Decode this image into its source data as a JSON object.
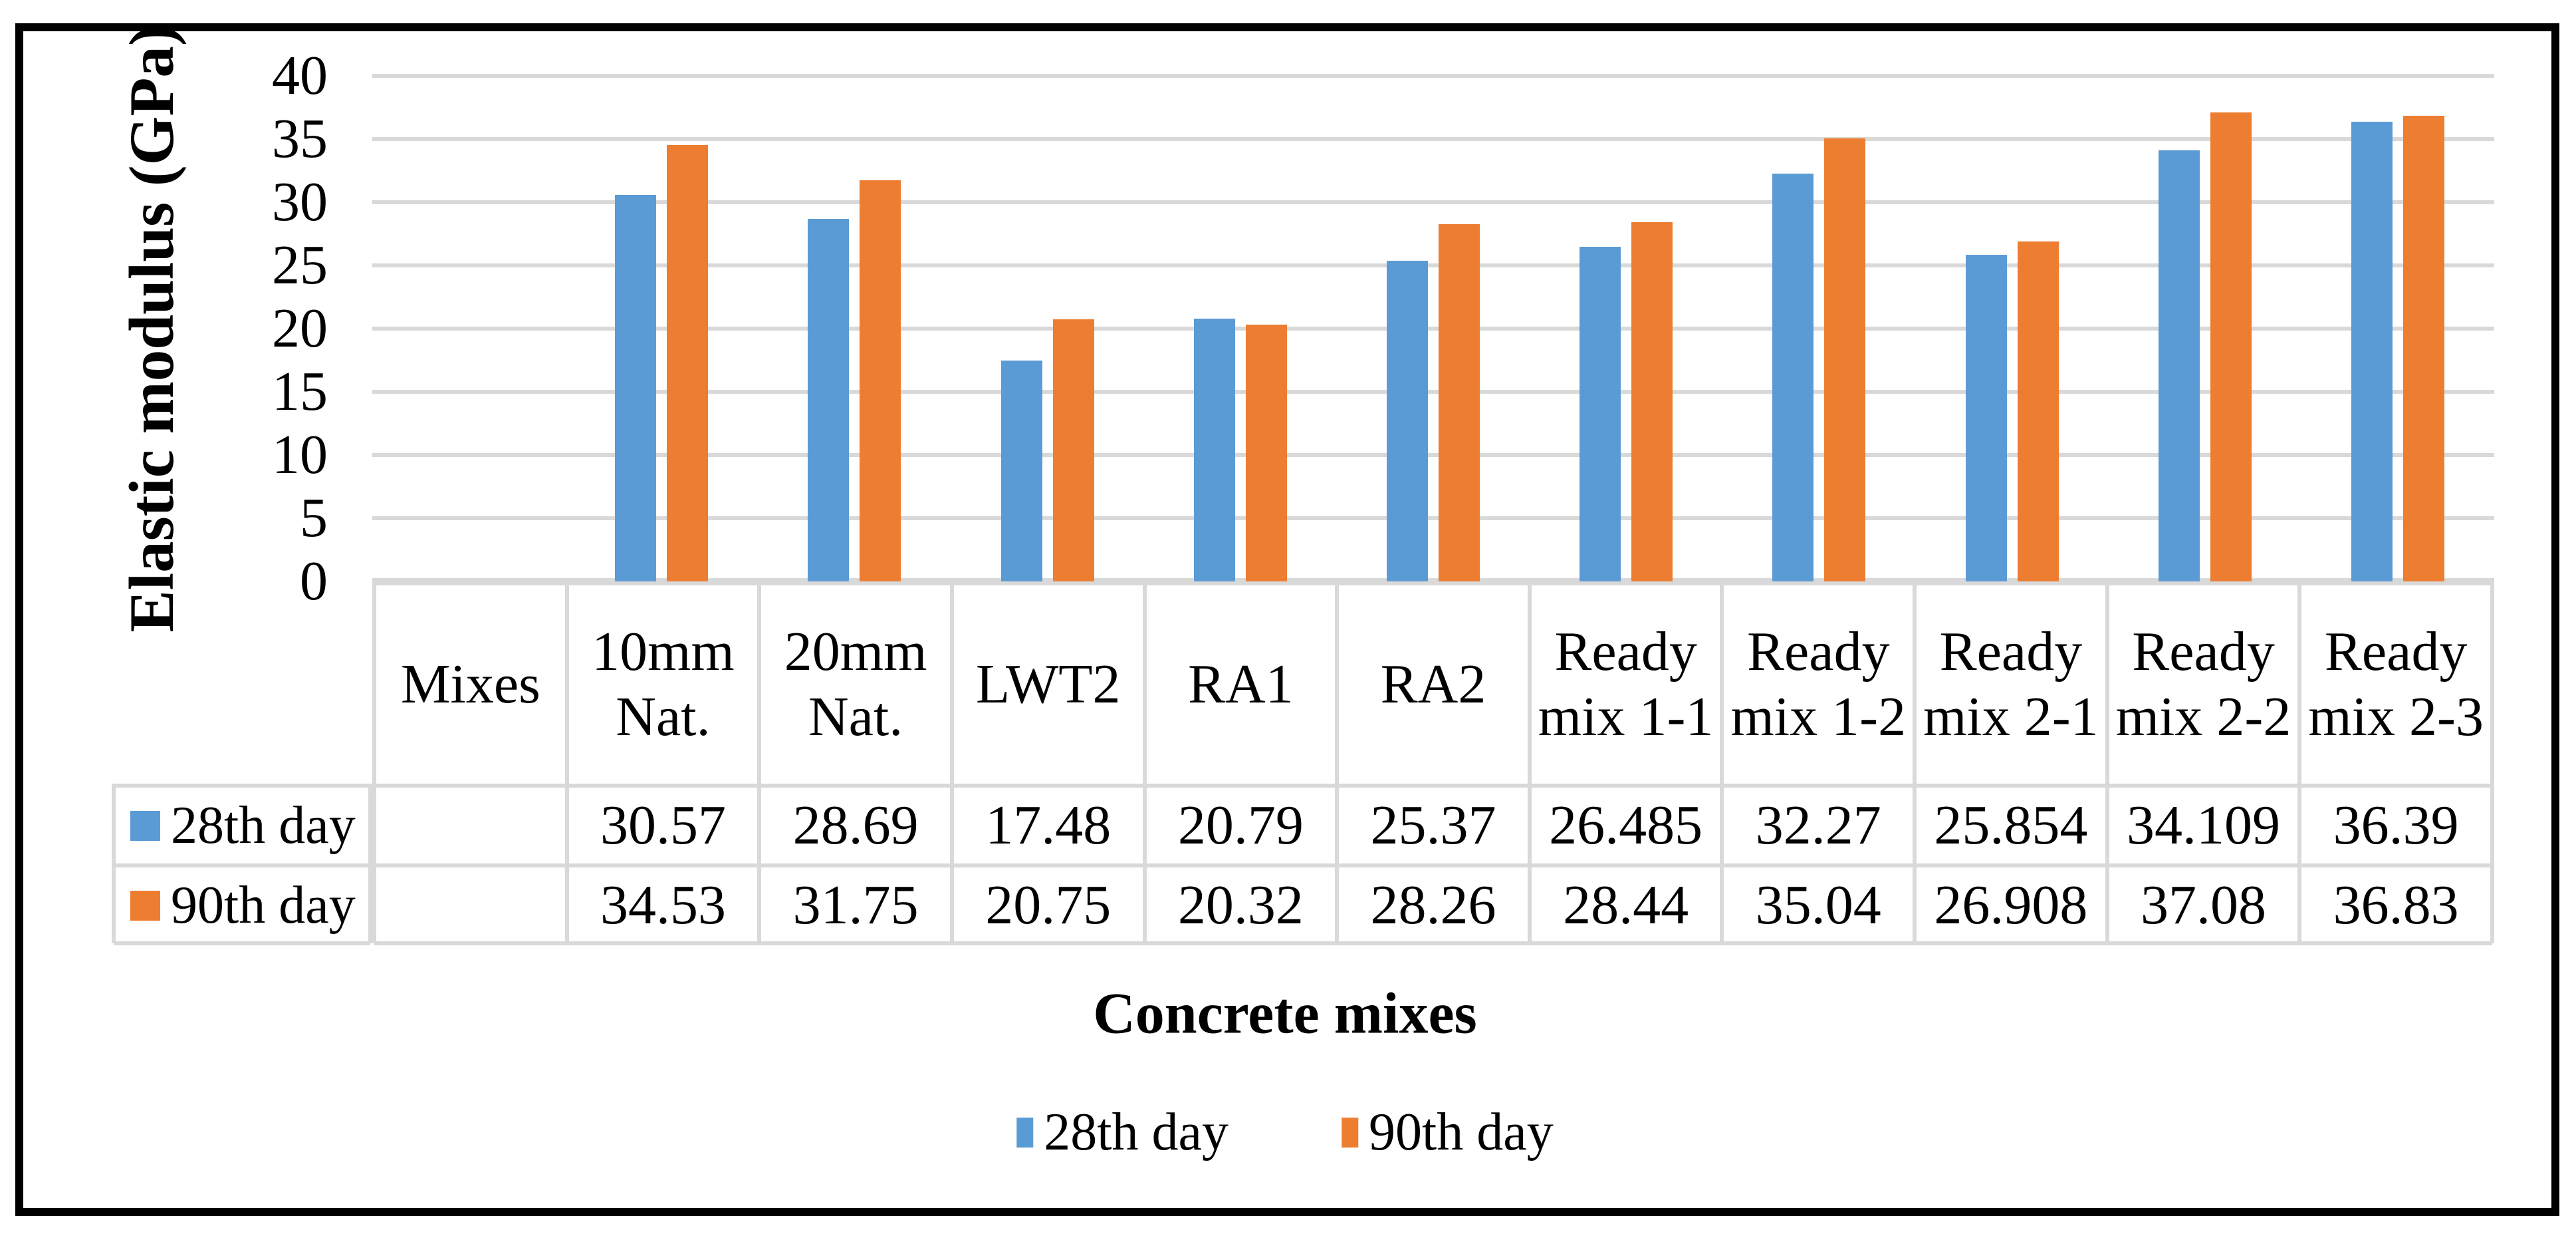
{
  "figure": {
    "border_color": "#000000",
    "background": "#FFFFFF"
  },
  "chart_data": {
    "type": "bar",
    "title": "",
    "categories": [
      "Mixes",
      "10mm Nat.",
      "20mm Nat.",
      "LWT2",
      "RA1",
      "RA2",
      "Ready mix 1-1",
      "Ready mix 1-2",
      "Ready mix 2-1",
      "Ready mix 2-2",
      "Ready mix 2-3"
    ],
    "series": [
      {
        "name": "28th day",
        "color": "#5B9BD5",
        "values": [
          null,
          30.57,
          28.69,
          17.48,
          20.79,
          25.37,
          26.485,
          32.27,
          25.854,
          34.109,
          36.39
        ]
      },
      {
        "name": "90th day",
        "color": "#ED7D31",
        "values": [
          null,
          34.53,
          31.75,
          20.75,
          20.32,
          28.26,
          28.44,
          35.04,
          26.908,
          37.08,
          36.83
        ]
      }
    ],
    "xlabel": "Concrete mixes",
    "ylabel": "Elastic modulus (GPa)",
    "ylim": [
      0,
      40
    ],
    "ytick_step": 5,
    "yticks": [
      "40",
      "35",
      "30",
      "25",
      "20",
      "15",
      "10",
      "5",
      "0"
    ],
    "grid": true,
    "gridline_color": "#D9D9D9",
    "axis_line_color": "#D9D9D9",
    "legend_position": "bottom"
  },
  "data_table": {
    "border_color": "#D9D9D9",
    "rows": [
      {
        "label": "28th day",
        "key_color": "#5B9BD5",
        "cells": [
          "",
          "30.57",
          "28.69",
          "17.48",
          "20.79",
          "25.37",
          "26.485",
          "32.27",
          "25.854",
          "34.109",
          "36.39"
        ]
      },
      {
        "label": "90th day",
        "key_color": "#ED7D31",
        "cells": [
          "",
          "34.53",
          "31.75",
          "20.75",
          "20.32",
          "28.26",
          "28.44",
          "35.04",
          "26.908",
          "37.08",
          "36.83"
        ]
      }
    ]
  },
  "legend": {
    "items": [
      {
        "label": "28th day",
        "color": "#5B9BD5"
      },
      {
        "label": "90th day",
        "color": "#ED7D31"
      }
    ]
  }
}
